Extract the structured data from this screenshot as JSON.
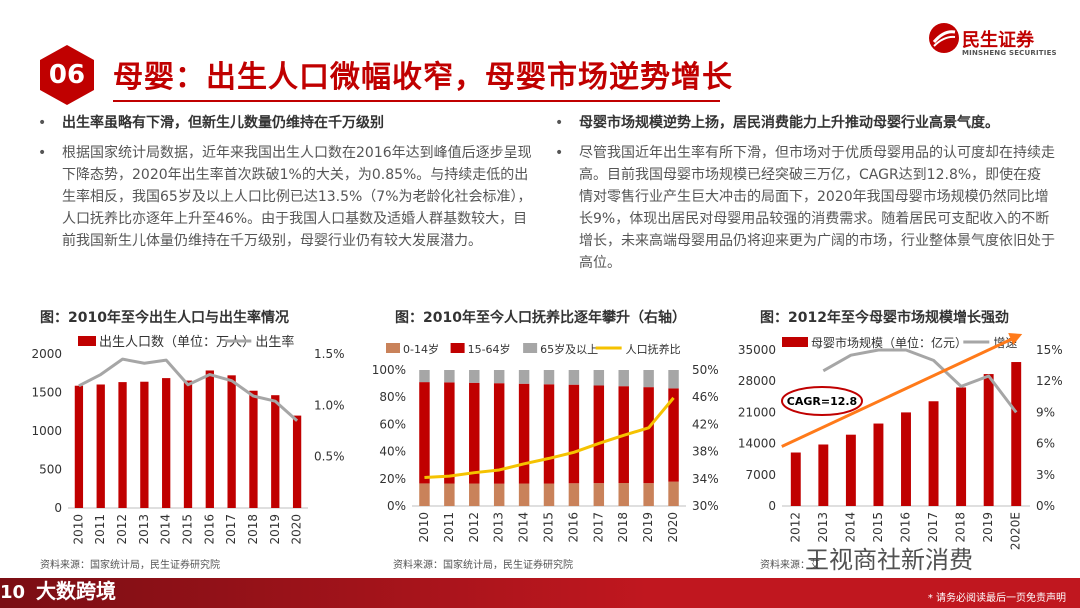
{
  "header": {
    "badge": "06",
    "title": "母婴：出生人口微幅收窄，母婴市场逆势增长",
    "logo_cn": "民生证券",
    "logo_en": "MINSHENG SECURITIES",
    "accent_color": "#c00000"
  },
  "left_text": {
    "heading": "出生率虽略有下滑，但新生儿数量仍维持在千万级别",
    "body": "根据国家统计局数据，近年来我国出生人口数在2016年达到峰值后逐步呈现下降态势，2020年出生率首次跌破1%的大关，为0.85%。与持续走低的出生率相反，我国65岁及以上人口比例已达13.5%（7%为老龄化社会标准），人口抚养比亦逐年上升至46%。由于我国人口基数及适婚人群基数较大，目前我国新生儿体量仍维持在千万级别，母婴行业仍有较大发展潜力。"
  },
  "right_text": {
    "heading": "母婴市场规模逆势上扬，居民消费能力上升推动母婴行业高景气度。",
    "body": "尽管我国近年出生率有所下滑，但市场对于优质母婴用品的认可度却在持续走高。目前我国母婴市场规模已经突破三万亿，CAGR达到12.8%，即使在疫情对零售行业产生巨大冲击的局面下，2020年我国母婴市场规模仍然同比增长9%，体现出居民对母婴用品较强的消费需求。随着居民可支配收入的不断增长，未来高端母婴用品仍将迎来更为广阔的市场，行业整体景气度依旧处于高位。"
  },
  "bullet": "•",
  "chart_data": [
    {
      "type": "bar",
      "title": "图：2010年至今出生人口与出生率情况",
      "categories": [
        "2010",
        "2011",
        "2012",
        "2013",
        "2014",
        "2015",
        "2016",
        "2017",
        "2018",
        "2019",
        "2020"
      ],
      "series": [
        {
          "name": "出生人口数（单位：万人）",
          "axis": "left",
          "type": "bar",
          "color": "#c00000",
          "values": [
            1588,
            1604,
            1635,
            1640,
            1687,
            1655,
            1786,
            1723,
            1523,
            1465,
            1200
          ]
        },
        {
          "name": "出生率",
          "axis": "right",
          "type": "line",
          "color": "#a6a6a6",
          "values": [
            1.19,
            1.3,
            1.45,
            1.41,
            1.44,
            1.2,
            1.3,
            1.24,
            1.09,
            1.04,
            0.85
          ]
        }
      ],
      "y_left": {
        "min": 0,
        "max": 2000,
        "ticks": [
          "0",
          "500",
          "1000",
          "1500",
          "2000"
        ]
      },
      "y_right": {
        "min": 0,
        "max": 1.5,
        "ticks": [
          "0.5%",
          "1.0%",
          "1.5%"
        ]
      },
      "source": "资料来源：国家统计局，民生证券研究院"
    },
    {
      "type": "stacked_bar",
      "title": "图：2010年至今人口抚养比逐年攀升（右轴）",
      "categories": [
        "2010",
        "2011",
        "2012",
        "2013",
        "2014",
        "2015",
        "2016",
        "2017",
        "2018",
        "2019",
        "2020"
      ],
      "series": [
        {
          "name": "0-14岁",
          "color": "#c9825a",
          "values": [
            16.6,
            16.5,
            16.5,
            16.4,
            16.5,
            16.5,
            16.7,
            16.8,
            16.9,
            16.8,
            17.9
          ]
        },
        {
          "name": "15-64岁",
          "color": "#c00000",
          "values": [
            74.5,
            74.4,
            74.1,
            73.9,
            73.4,
            73.0,
            72.5,
            71.8,
            71.2,
            70.6,
            68.6
          ]
        },
        {
          "name": "65岁及以上",
          "color": "#a6a6a6",
          "values": [
            8.9,
            9.1,
            9.4,
            9.7,
            10.1,
            10.5,
            10.8,
            11.4,
            11.9,
            12.6,
            13.5
          ]
        },
        {
          "name": "人口抚养比",
          "axis": "right",
          "type": "line",
          "color": "#f5c200",
          "values": [
            34.2,
            34.4,
            34.9,
            35.3,
            36.2,
            37.0,
            37.9,
            39.2,
            40.4,
            41.5,
            45.9
          ]
        }
      ],
      "y_left": {
        "min": 0,
        "max": 100,
        "ticks": [
          "0%",
          "20%",
          "40%",
          "60%",
          "80%",
          "100%"
        ]
      },
      "y_right": {
        "min": 30,
        "max": 50,
        "ticks": [
          "30%",
          "34%",
          "38%",
          "42%",
          "46%",
          "50%"
        ]
      },
      "source": "资料来源：国家统计局，民生证券研究院"
    },
    {
      "type": "bar",
      "title": "图：2012年至今母婴市场规模增长强劲",
      "categories": [
        "2012",
        "2013",
        "2014",
        "2015",
        "2016",
        "2017",
        "2018",
        "2019",
        "2020E"
      ],
      "series": [
        {
          "name": "母婴市场规模（单位：亿元）",
          "axis": "left",
          "type": "bar",
          "color": "#c00000",
          "values": [
            12000,
            13800,
            16000,
            18500,
            21000,
            23500,
            26600,
            29600,
            32300
          ]
        },
        {
          "name": "增速",
          "axis": "right",
          "type": "line",
          "color": "#a6a6a6",
          "values": [
            null,
            13.0,
            14.5,
            15.0,
            15.0,
            14.0,
            11.5,
            12.5,
            9.0
          ]
        }
      ],
      "y_left": {
        "min": 0,
        "max": 35000,
        "ticks": [
          "0",
          "7000",
          "14000",
          "21000",
          "28000",
          "35000"
        ]
      },
      "y_right": {
        "min": 0,
        "max": 15,
        "ticks": [
          "0%",
          "3%",
          "6%",
          "9%",
          "12%",
          "15%"
        ]
      },
      "annotation": "CAGR=12.8",
      "trend_color": "#ff7a1a",
      "source": "资料来源：艾"
    }
  ],
  "watermark": {
    "text1": "大数跨境",
    "text2": "王视商社新消费",
    "footer_note": "* 请务必阅读最后一页免责声明"
  }
}
